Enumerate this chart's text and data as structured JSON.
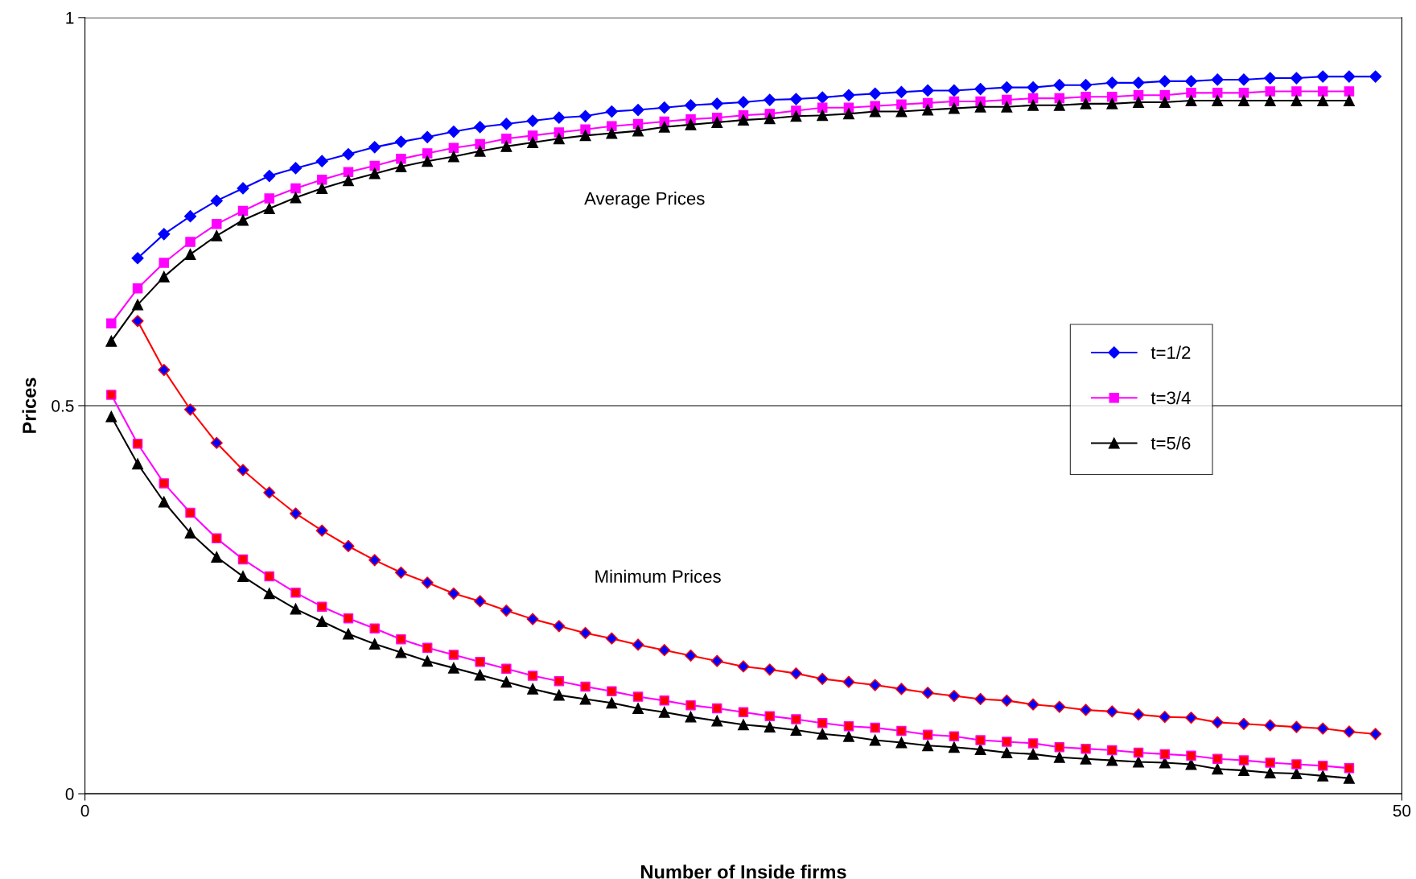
{
  "chart_data": {
    "type": "line",
    "xlabel": "Number of Inside firms",
    "ylabel": "Prices",
    "xlim": [
      0,
      50
    ],
    "ylim": [
      0,
      1
    ],
    "xticks": [
      0,
      50
    ],
    "yticks": [
      0,
      0.5,
      1
    ],
    "grid": "y",
    "legend": "right",
    "annotations": [
      "Average Prices",
      "Minimum Prices"
    ],
    "series": [
      {
        "name": "t=1/2",
        "color": "#0000ff",
        "marker": "diamond",
        "x": [
          2,
          3,
          4,
          5,
          6,
          7,
          8,
          9,
          10,
          11,
          12,
          13,
          14,
          15,
          16,
          17,
          18,
          19,
          20,
          21,
          22,
          23,
          24,
          25,
          26,
          27,
          28,
          29,
          30,
          31,
          32,
          33,
          34,
          35,
          36,
          37,
          38,
          39,
          40,
          41,
          42,
          43,
          44,
          45,
          46,
          47,
          48,
          49
        ],
        "values": [
          0.69,
          0.721,
          0.744,
          0.764,
          0.78,
          0.796,
          0.806,
          0.815,
          0.824,
          0.833,
          0.84,
          0.846,
          0.853,
          0.859,
          0.863,
          0.867,
          0.871,
          0.873,
          0.879,
          0.881,
          0.884,
          0.887,
          0.889,
          0.891,
          0.894,
          0.895,
          0.897,
          0.9,
          0.902,
          0.904,
          0.906,
          0.906,
          0.908,
          0.91,
          0.91,
          0.913,
          0.913,
          0.916,
          0.916,
          0.918,
          0.918,
          0.92,
          0.92,
          0.922,
          0.922,
          0.924,
          0.924,
          0.924
        ]
      },
      {
        "name": "t=3/4",
        "color": "#ff00ff",
        "marker": "square",
        "x": [
          1,
          2,
          3,
          4,
          5,
          6,
          7,
          8,
          9,
          10,
          11,
          12,
          13,
          14,
          15,
          16,
          17,
          18,
          19,
          20,
          21,
          22,
          23,
          24,
          25,
          26,
          27,
          28,
          29,
          30,
          31,
          32,
          33,
          34,
          35,
          36,
          37,
          38,
          39,
          40,
          41,
          42,
          43,
          44,
          45,
          46,
          47,
          48
        ],
        "values": [
          0.606,
          0.651,
          0.684,
          0.711,
          0.734,
          0.751,
          0.767,
          0.78,
          0.791,
          0.801,
          0.809,
          0.818,
          0.825,
          0.832,
          0.837,
          0.844,
          0.848,
          0.852,
          0.856,
          0.86,
          0.863,
          0.866,
          0.869,
          0.871,
          0.874,
          0.876,
          0.88,
          0.884,
          0.884,
          0.886,
          0.888,
          0.89,
          0.892,
          0.892,
          0.894,
          0.896,
          0.896,
          0.898,
          0.898,
          0.9,
          0.9,
          0.903,
          0.903,
          0.903,
          0.905,
          0.905,
          0.905,
          0.905
        ]
      },
      {
        "name": "t=5/6",
        "color": "#000000",
        "marker": "triangle",
        "x": [
          1,
          2,
          3,
          4,
          5,
          6,
          7,
          8,
          9,
          10,
          11,
          12,
          13,
          14,
          15,
          16,
          17,
          18,
          19,
          20,
          21,
          22,
          23,
          24,
          25,
          26,
          27,
          28,
          29,
          30,
          31,
          32,
          33,
          34,
          35,
          36,
          37,
          38,
          39,
          40,
          41,
          42,
          43,
          44,
          45,
          46,
          47,
          48
        ],
        "values": [
          0.583,
          0.63,
          0.666,
          0.695,
          0.719,
          0.739,
          0.754,
          0.768,
          0.78,
          0.79,
          0.799,
          0.808,
          0.815,
          0.821,
          0.828,
          0.834,
          0.839,
          0.844,
          0.848,
          0.851,
          0.854,
          0.859,
          0.862,
          0.865,
          0.868,
          0.87,
          0.873,
          0.874,
          0.876,
          0.879,
          0.879,
          0.881,
          0.883,
          0.885,
          0.885,
          0.887,
          0.887,
          0.889,
          0.889,
          0.891,
          0.891,
          0.893,
          0.893,
          0.893,
          0.893,
          0.893,
          0.893,
          0.893
        ]
      },
      {
        "color": "#ff0000",
        "colors": [
          "#0000ff",
          "#0000ff",
          "#0000ff",
          "#0000ff",
          "#0000ff",
          "#0000ff",
          "#0000ff",
          "#0000ff",
          "#0000ff",
          "#0000ff",
          "#0000ff",
          "#0000ff",
          "#0000ff",
          "#0000ff",
          "#0000ff",
          "#0000ff",
          "#0000ff",
          "#0000ff",
          "#0000ff",
          "#0000ff",
          "#0000ff",
          "#0000ff",
          "#0000ff",
          "#0000ff",
          "#0000ff",
          "#0000ff",
          "#0000ff",
          "#0000ff",
          "#0000ff",
          "#0000ff",
          "#0000ff",
          "#0000ff",
          "#0000ff",
          "#0000ff",
          "#0000ff",
          "#0000ff",
          "#0000ff",
          "#0000ff",
          "#0000ff",
          "#0000ff",
          "#0000ff",
          "#0000ff",
          "#0000ff",
          "#0000ff",
          "#0000ff",
          "#0000ff",
          "#0000ff",
          "#0000ff"
        ],
        "marker": "diamond",
        "x": [
          2,
          3,
          4,
          5,
          6,
          7,
          8,
          9,
          10,
          11,
          12,
          13,
          14,
          15,
          16,
          17,
          18,
          19,
          20,
          21,
          22,
          23,
          24,
          25,
          26,
          27,
          28,
          29,
          30,
          31,
          32,
          33,
          34,
          35,
          36,
          37,
          38,
          39,
          40,
          41,
          42,
          43,
          44,
          45,
          46,
          47,
          48,
          49
        ],
        "values": [
          0.609,
          0.546,
          0.495,
          0.452,
          0.417,
          0.388,
          0.361,
          0.339,
          0.319,
          0.301,
          0.285,
          0.272,
          0.258,
          0.248,
          0.236,
          0.225,
          0.216,
          0.207,
          0.2,
          0.192,
          0.185,
          0.178,
          0.171,
          0.164,
          0.16,
          0.155,
          0.148,
          0.144,
          0.14,
          0.135,
          0.13,
          0.126,
          0.122,
          0.12,
          0.115,
          0.112,
          0.108,
          0.106,
          0.102,
          0.099,
          0.098,
          0.092,
          0.09,
          0.088,
          0.086,
          0.084,
          0.08,
          0.077
        ]
      },
      {
        "color": "#ff00ff",
        "colors": [
          "#ff0000",
          "#ff0000",
          "#ff0000",
          "#ff0000",
          "#ff0000",
          "#ff0000",
          "#ff0000",
          "#ff0000",
          "#ff0000",
          "#ff0000",
          "#ff0000",
          "#ff0000",
          "#ff0000",
          "#ff0000",
          "#ff0000",
          "#ff0000",
          "#ff0000",
          "#ff0000",
          "#ff0000",
          "#ff0000",
          "#ff0000",
          "#ff0000",
          "#ff0000",
          "#ff0000",
          "#ff0000",
          "#ff0000",
          "#ff0000",
          "#ff0000",
          "#ff0000",
          "#ff0000",
          "#ff0000",
          "#ff0000",
          "#ff0000",
          "#ff0000",
          "#ff0000",
          "#ff0000",
          "#ff0000",
          "#ff0000",
          "#ff0000",
          "#ff0000",
          "#ff0000",
          "#ff0000",
          "#ff0000",
          "#ff0000",
          "#ff0000",
          "#ff0000",
          "#ff0000",
          "#ff0000"
        ],
        "marker": "square",
        "x": [
          1,
          2,
          3,
          4,
          5,
          6,
          7,
          8,
          9,
          10,
          11,
          12,
          13,
          14,
          15,
          16,
          17,
          18,
          19,
          20,
          21,
          22,
          23,
          24,
          25,
          26,
          27,
          28,
          29,
          30,
          31,
          32,
          33,
          34,
          35,
          36,
          37,
          38,
          39,
          40,
          41,
          42,
          43,
          44,
          45,
          46,
          47,
          48
        ],
        "values": [
          0.514,
          0.451,
          0.4,
          0.362,
          0.329,
          0.302,
          0.28,
          0.259,
          0.241,
          0.226,
          0.213,
          0.199,
          0.188,
          0.179,
          0.17,
          0.161,
          0.152,
          0.145,
          0.138,
          0.132,
          0.125,
          0.12,
          0.114,
          0.11,
          0.105,
          0.1,
          0.096,
          0.091,
          0.087,
          0.085,
          0.081,
          0.076,
          0.074,
          0.069,
          0.067,
          0.065,
          0.06,
          0.058,
          0.056,
          0.053,
          0.051,
          0.049,
          0.045,
          0.043,
          0.04,
          0.038,
          0.036,
          0.033
        ]
      },
      {
        "color": "#000000",
        "marker": "triangle",
        "x": [
          1,
          2,
          3,
          4,
          5,
          6,
          7,
          8,
          9,
          10,
          11,
          12,
          13,
          14,
          15,
          16,
          17,
          18,
          19,
          20,
          21,
          22,
          23,
          24,
          25,
          26,
          27,
          28,
          29,
          30,
          31,
          32,
          33,
          34,
          35,
          36,
          37,
          38,
          39,
          40,
          41,
          42,
          43,
          44,
          45,
          46,
          47,
          48
        ],
        "values": [
          0.486,
          0.425,
          0.376,
          0.336,
          0.305,
          0.28,
          0.258,
          0.238,
          0.222,
          0.206,
          0.193,
          0.182,
          0.171,
          0.162,
          0.153,
          0.144,
          0.135,
          0.127,
          0.122,
          0.117,
          0.11,
          0.105,
          0.099,
          0.094,
          0.089,
          0.086,
          0.082,
          0.077,
          0.074,
          0.069,
          0.066,
          0.062,
          0.06,
          0.057,
          0.053,
          0.051,
          0.047,
          0.045,
          0.043,
          0.041,
          0.04,
          0.038,
          0.032,
          0.03,
          0.027,
          0.026,
          0.023,
          0.02
        ]
      }
    ]
  }
}
